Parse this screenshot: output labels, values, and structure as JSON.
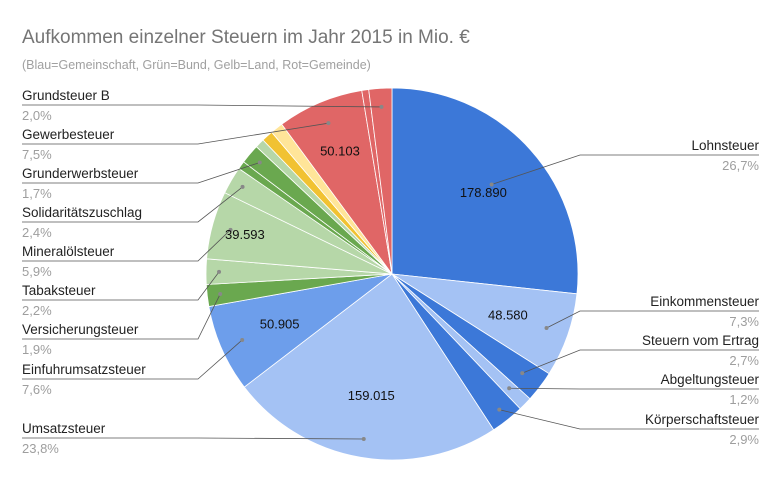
{
  "chart_data": {
    "type": "pie",
    "title": "Aufkommen einzelner Steuern im Jahr 2015 in Mio. €",
    "subtitle": "(Blau=Gemeinschaft, Grün=Bund, Gelb=Land, Rot=Gemeinde)",
    "slices": [
      {
        "name": "Lohnsteuer",
        "percent": 26.7,
        "pct_label": "26,7%",
        "value_label": "178.890",
        "color": "#3c78d8"
      },
      {
        "name": "Einkommensteuer",
        "percent": 7.3,
        "pct_label": "7,3%",
        "value_label": "48.580",
        "color": "#a4c2f4"
      },
      {
        "name": "Steuern vom Ertrag",
        "percent": 2.7,
        "pct_label": "2,7%",
        "color": "#3c78d8"
      },
      {
        "name": "Abgeltungsteuer",
        "percent": 1.2,
        "pct_label": "1,2%",
        "color": "#a4c2f4"
      },
      {
        "name": "Körperschaftsteuer",
        "percent": 2.9,
        "pct_label": "2,9%",
        "color": "#3c78d8"
      },
      {
        "name": "Umsatzsteuer",
        "percent": 23.8,
        "pct_label": "23,8%",
        "value_label": "159.015",
        "color": "#a4c2f4"
      },
      {
        "name": "Einfuhrumsatzsteuer",
        "percent": 7.6,
        "pct_label": "7,6%",
        "value_label": "50.905",
        "color": "#6d9eeb"
      },
      {
        "name": "Versicherungsteuer",
        "percent": 1.9,
        "pct_label": "1,9%",
        "color": "#6aa84f"
      },
      {
        "name": "Tabaksteuer",
        "percent": 2.2,
        "pct_label": "2,2%",
        "color": "#b6d7a8"
      },
      {
        "name": "Mineralölsteuer",
        "percent": 5.9,
        "pct_label": "5,9%",
        "value_label": "39.593",
        "color": "#b6d7a8"
      },
      {
        "name": "Solidaritätszuschlag",
        "percent": 2.4,
        "pct_label": "2,4%",
        "color": "#b6d7a8"
      },
      {
        "name": "Grunderwerbsteuer",
        "percent": 1.7,
        "pct_label": "1,7%",
        "color": "#6aa84f"
      },
      {
        "name": "Gewerbesteuer",
        "percent": 7.5,
        "pct_label": "7,5%",
        "value_label": "50.103",
        "color": "#e06666"
      },
      {
        "name": "Grundsteuer B",
        "percent": 2.0,
        "pct_label": "2,0%",
        "color": "#e06666"
      }
    ],
    "unlabeled_slices": [
      {
        "after": "Solidaritätszuschlag",
        "percent": 0.7,
        "color": "#6aa84f"
      },
      {
        "after": "Grunderwerbsteuer",
        "percent": 0.8,
        "color": "#b6d7a8"
      },
      {
        "after": "Grunderwerbsteuer",
        "percent": 1.0,
        "color": "#f1c232"
      },
      {
        "after": "Grunderwerbsteuer",
        "percent": 1.1,
        "color": "#ffe599"
      },
      {
        "after": "Gewerbesteuer",
        "percent": 0.6,
        "color": "#e06666"
      }
    ]
  }
}
